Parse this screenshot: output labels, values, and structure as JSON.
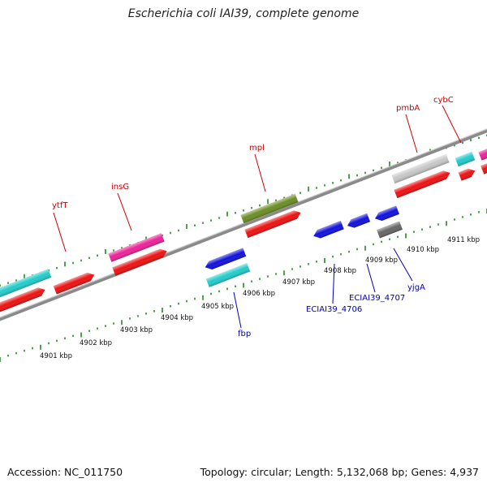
{
  "title": "Escherichia coli IAI39, complete genome",
  "footer": {
    "accession": "Accession: NC_011750",
    "summary": "Topology: circular; Length: 5,132,068 bp; Genes: 4,937"
  },
  "colors": {
    "cds": "#ee1111",
    "insertion": "#ee2299",
    "cyan": "#22cccc",
    "olive": "#6b8e23",
    "gray": "#c8c8c8",
    "darkgray": "#666666",
    "reverse": "#1111dd",
    "ticks": "#228b22",
    "backbone": "#8a8a8a"
  },
  "scale_labels": [
    "4901 kbp",
    "4902 kbp",
    "4903 kbp",
    "4904 kbp",
    "4905 kbp",
    "4906 kbp",
    "4907 kbp",
    "4908 kbp",
    "4909 kbp",
    "4910 kbp",
    "4911 kbp"
  ],
  "forward_labels": [
    "ytfT",
    "insG",
    "mpl",
    "pmbA",
    "cybC"
  ],
  "reverse_labels": [
    "fbp",
    "ECIAI39_4706",
    "ECIAI39_4707",
    "yjgA"
  ]
}
